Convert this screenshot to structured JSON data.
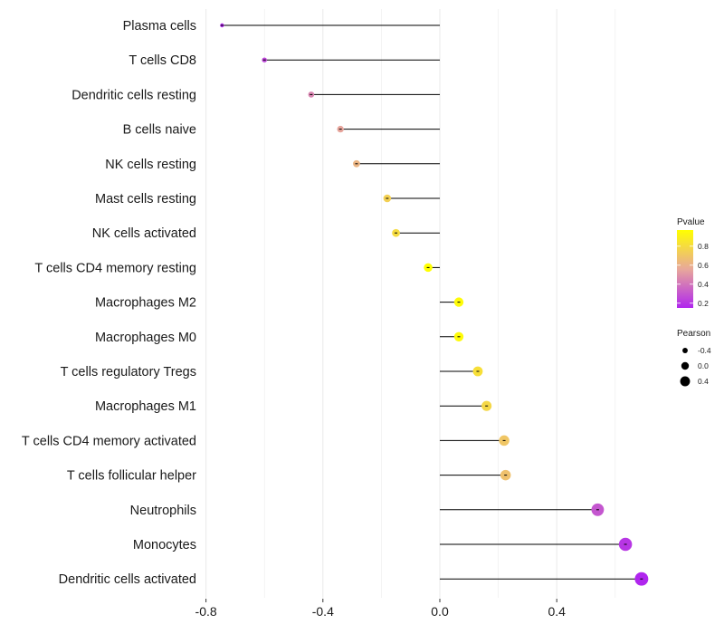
{
  "chart_data": {
    "type": "lollipop",
    "xlabel": "",
    "ylabel": "",
    "xlim": [
      -0.8,
      0.72
    ],
    "xticks": [
      -0.8,
      -0.4,
      0.0,
      0.4
    ],
    "xtick_labels": [
      "-0.8",
      "-0.4",
      "0.0",
      "0.4"
    ],
    "xgrid_minor": [
      -0.6,
      -0.2,
      0.2,
      0.6
    ],
    "points": [
      {
        "category": "Plasma cells",
        "pearson": -0.745,
        "pvalue": 0.16
      },
      {
        "category": "T cells CD8",
        "pearson": -0.6,
        "pvalue": 0.25
      },
      {
        "category": "Dendritic cells resting",
        "pearson": -0.44,
        "pvalue": 0.45
      },
      {
        "category": "B cells naive",
        "pearson": -0.34,
        "pvalue": 0.55
      },
      {
        "category": "NK cells resting",
        "pearson": -0.285,
        "pvalue": 0.62
      },
      {
        "category": "Mast cells resting",
        "pearson": -0.18,
        "pvalue": 0.75
      },
      {
        "category": "NK cells activated",
        "pearson": -0.15,
        "pvalue": 0.8
      },
      {
        "category": "T cells CD4 memory resting",
        "pearson": -0.04,
        "pvalue": 0.97
      },
      {
        "category": "Macrophages M2",
        "pearson": 0.065,
        "pvalue": 0.95
      },
      {
        "category": "Macrophages M0",
        "pearson": 0.065,
        "pvalue": 0.95
      },
      {
        "category": "T cells regulatory  Tregs",
        "pearson": 0.13,
        "pvalue": 0.82
      },
      {
        "category": "Macrophages M1",
        "pearson": 0.16,
        "pvalue": 0.78
      },
      {
        "category": "T cells CD4 memory activated",
        "pearson": 0.22,
        "pvalue": 0.7
      },
      {
        "category": "T cells follicular helper",
        "pearson": 0.225,
        "pvalue": 0.68
      },
      {
        "category": "Neutrophils",
        "pearson": 0.54,
        "pvalue": 0.3
      },
      {
        "category": "Monocytes",
        "pearson": 0.635,
        "pvalue": 0.2
      },
      {
        "category": "Dendritic cells activated",
        "pearson": 0.69,
        "pvalue": 0.15
      }
    ],
    "color_legend": {
      "title": "Pvalue",
      "ticks": [
        0.2,
        0.4,
        0.6,
        0.8
      ],
      "tick_labels": [
        "0.2",
        "0.4",
        "0.6",
        "0.8"
      ],
      "range": [
        0.15,
        0.97
      ],
      "low_color": "#b026ee",
      "mid_color": "#e8a89a",
      "high_color": "#ffff00"
    },
    "size_legend": {
      "title": "Pearson",
      "values": [
        -0.4,
        0.0,
        0.4
      ],
      "labels": [
        "-0.4",
        "0.0",
        "0.4"
      ]
    },
    "colors": {
      "stem": "#000000",
      "grid": "#ebebeb",
      "text": "#1a1a1a"
    }
  }
}
